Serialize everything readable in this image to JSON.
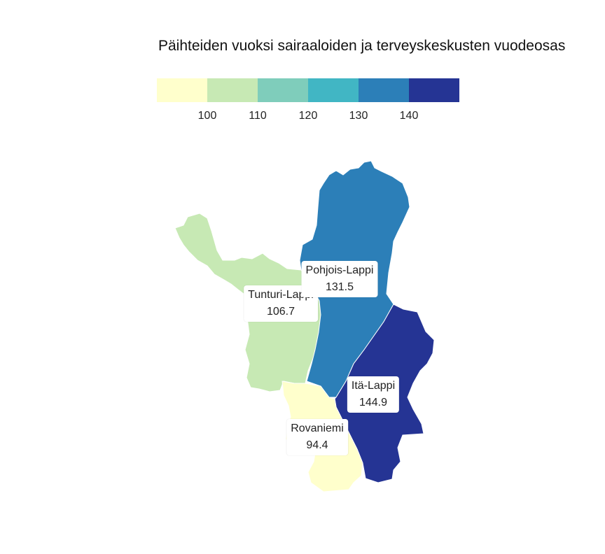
{
  "title": "Päihteiden vuoksi sairaaloiden ja terveyskeskusten vuodeosas",
  "legend": {
    "colors": [
      "#ffffcc",
      "#c7e9b4",
      "#7fcdbb",
      "#41b6c4",
      "#2c7fb8",
      "#253494"
    ],
    "ticks": [
      "100",
      "110",
      "120",
      "130",
      "140"
    ]
  },
  "regions": {
    "pohjois_lappi": {
      "name": "Pohjois-Lappi",
      "value": "131.5",
      "color": "#2c7fb8"
    },
    "tunturi_lappi": {
      "name": "Tunturi-Lappi",
      "value": "106.7",
      "color": "#c7e9b4"
    },
    "ita_lappi": {
      "name": "Itä-Lappi",
      "value": "144.9",
      "color": "#253494"
    },
    "rovaniemi": {
      "name": "Rovaniemi",
      "value": "94.4",
      "color": "#ffffcc"
    }
  }
}
